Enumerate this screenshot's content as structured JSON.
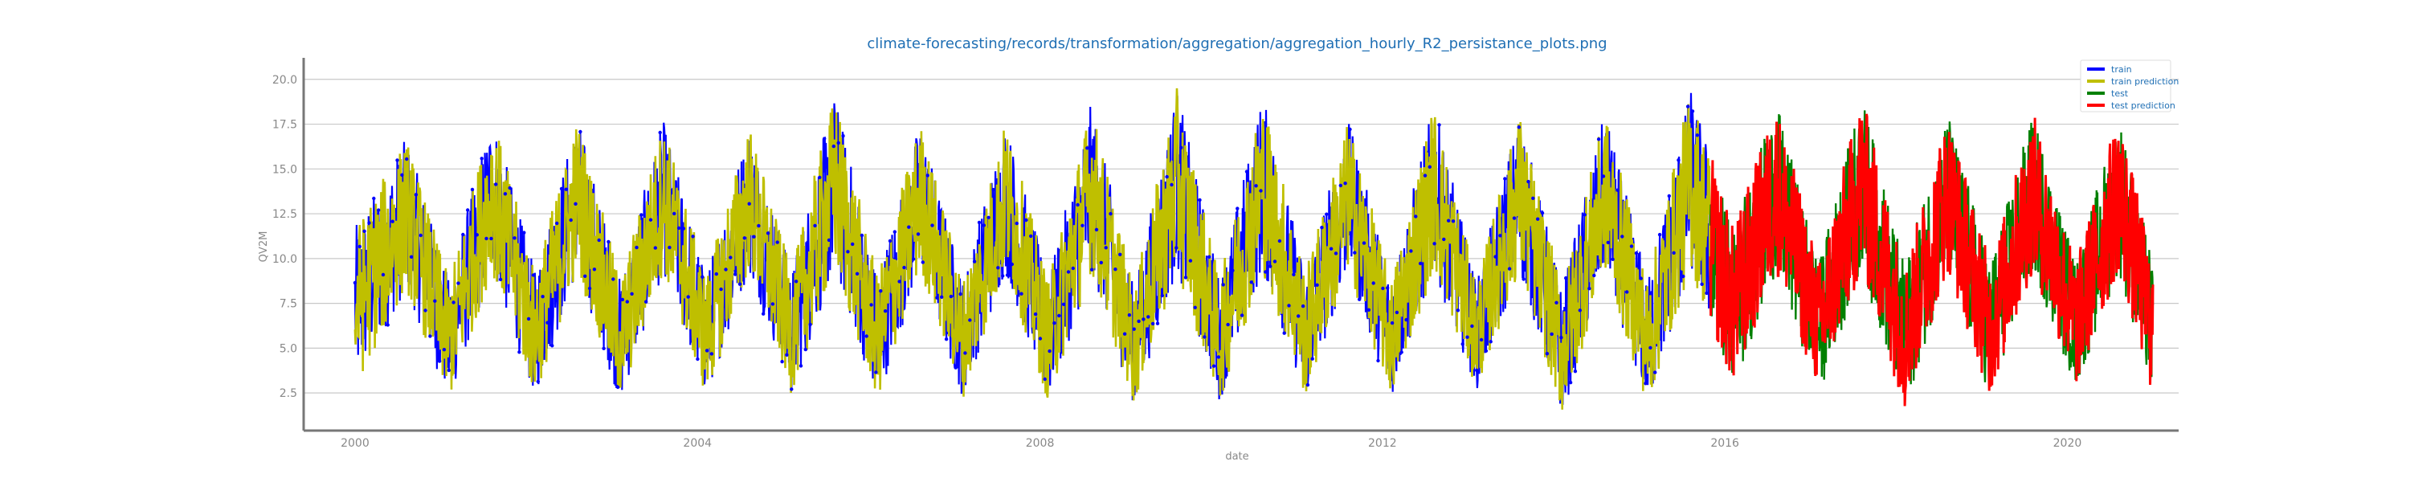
{
  "chart_data": {
    "type": "line",
    "title": "climate-forecasting/records/transformation/aggregation/aggregation_hourly_R2_persistance_plots.png",
    "xlabel": "date",
    "ylabel": "QV2M",
    "xlim": [
      1999.4,
      2021.3
    ],
    "ylim": [
      0.4,
      21.2
    ],
    "x_ticks": [
      2000,
      2004,
      2008,
      2012,
      2016,
      2020
    ],
    "x_tick_labels": [
      "2000",
      "2004",
      "2008",
      "2012",
      "2016",
      "2020"
    ],
    "y_ticks": [
      2.5,
      5.0,
      7.5,
      10.0,
      12.5,
      15.0,
      17.5,
      20.0
    ],
    "y_tick_labels": [
      "2.5",
      "5.0",
      "7.5",
      "10.0",
      "12.5",
      "15.0",
      "17.5",
      "20.0"
    ],
    "grid": "horizontal",
    "legend_position": "top-right",
    "seasonal_envelope": {
      "x": [
        2000.0,
        2000.6,
        2001.1,
        2001.6,
        2002.1,
        2002.6,
        2003.1,
        2003.6,
        2004.1,
        2004.6,
        2005.1,
        2005.6,
        2006.1,
        2006.6,
        2007.1,
        2007.6,
        2008.1,
        2008.6,
        2009.1,
        2009.6,
        2010.1,
        2010.6,
        2011.1,
        2011.6,
        2012.1,
        2012.6,
        2013.1,
        2013.6,
        2014.1,
        2014.6,
        2015.1,
        2015.6,
        2016.1,
        2016.6,
        2017.1,
        2017.6,
        2018.1,
        2018.6,
        2019.1,
        2019.6,
        2020.1,
        2020.6,
        2021.0
      ],
      "low": [
        2.5,
        8.0,
        1.8,
        9.0,
        2.0,
        9.0,
        1.7,
        9.0,
        2.0,
        9.0,
        2.2,
        9.0,
        1.8,
        9.0,
        2.0,
        9.0,
        1.7,
        9.0,
        1.6,
        9.0,
        1.8,
        9.0,
        2.0,
        9.0,
        2.0,
        9.0,
        2.5,
        9.0,
        1.0,
        9.0,
        1.5,
        9.0,
        2.5,
        9.0,
        2.2,
        9.0,
        1.3,
        9.0,
        2.0,
        9.0,
        2.5,
        9.0,
        2.0
      ],
      "high": [
        12.0,
        17.0,
        9.0,
        18.5,
        9.5,
        18.2,
        9.0,
        18.0,
        9.2,
        17.8,
        9.5,
        19.6,
        9.2,
        18.0,
        9.0,
        18.0,
        9.0,
        19.0,
        8.5,
        19.8,
        9.0,
        19.5,
        9.5,
        18.0,
        9.0,
        19.0,
        8.8,
        18.5,
        8.5,
        18.5,
        9.0,
        19.8,
        12.0,
        19.0,
        10.0,
        19.5,
        9.8,
        18.5,
        10.0,
        18.5,
        10.0,
        18.5,
        10.0
      ]
    },
    "series": [
      {
        "name": "train",
        "color": "#0000ff",
        "x_range": [
          2000.0,
          2015.83
        ]
      },
      {
        "name": "train prediction",
        "color": "#bfbf00",
        "x_range": [
          2000.0,
          2015.83
        ]
      },
      {
        "name": "test",
        "color": "#008000",
        "x_range": [
          2015.83,
          2021.0
        ]
      },
      {
        "name": "test prediction",
        "color": "#ff0000",
        "x_range": [
          2015.83,
          2021.0
        ]
      }
    ]
  }
}
